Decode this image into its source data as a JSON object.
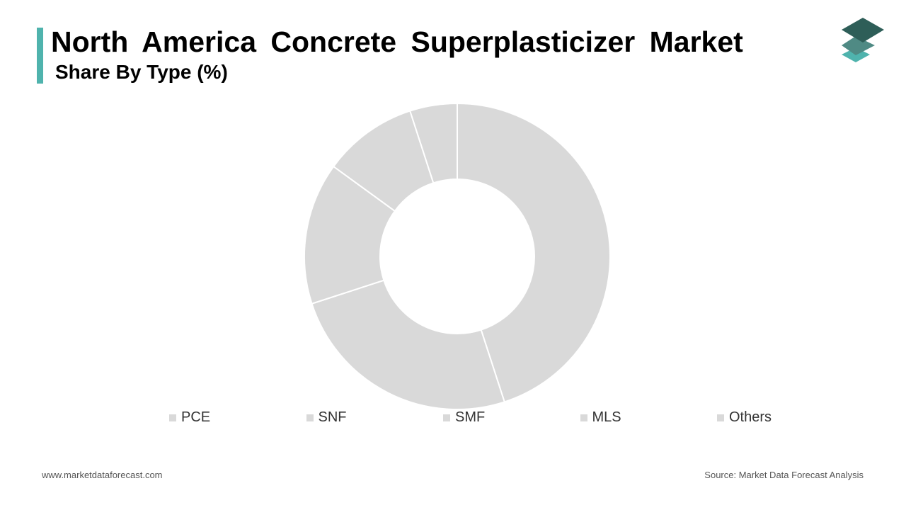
{
  "header": {
    "title": "North America Concrete Superplasticizer Market",
    "subtitle": "Share By Type (%)"
  },
  "colors": {
    "accent": "#4fb3ad",
    "slice": "#d9d9d9",
    "slice_border": "#ffffff",
    "logo_top": "#2e5e58",
    "logo_mid": "#4f8a84",
    "logo_bottom": "#4fb3ad"
  },
  "icons": {
    "brand_logo": "stacked-layers-icon"
  },
  "chart_data": {
    "type": "pie",
    "donut": true,
    "title": "North America Concrete Superplasticizer Market",
    "subtitle": "Share By Type (%)",
    "categories": [
      "PCE",
      "SNF",
      "SMF",
      "MLS",
      "Others"
    ],
    "values": [
      45,
      25,
      15,
      10,
      5
    ],
    "data_labels": false,
    "legend_placement": "bottom"
  },
  "footer": {
    "website": "www.marketdataforecast.com",
    "source": "Source: Market Data Forecast Analysis"
  }
}
